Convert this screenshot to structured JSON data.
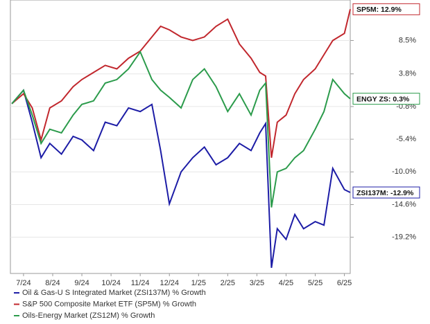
{
  "chart_data": {
    "type": "line",
    "x": [
      -0.4,
      0,
      0.3,
      0.6,
      0.9,
      1.3,
      1.7,
      2,
      2.4,
      2.8,
      3.2,
      3.6,
      4,
      4.4,
      4.7,
      5,
      5.4,
      5.8,
      6.2,
      6.6,
      7,
      7.4,
      7.8,
      8.1,
      8.3,
      8.5,
      8.7,
      9,
      9.3,
      9.6,
      10,
      10.3,
      10.6,
      11,
      11.2
    ],
    "xlim": [
      -0.45,
      11.2
    ],
    "xticks": [
      {
        "value": 0,
        "label": "7/24"
      },
      {
        "value": 1,
        "label": "8/24"
      },
      {
        "value": 2,
        "label": "9/24"
      },
      {
        "value": 3,
        "label": "10/24"
      },
      {
        "value": 4,
        "label": "11/24"
      },
      {
        "value": 5,
        "label": "12/24"
      },
      {
        "value": 6,
        "label": "1/25"
      },
      {
        "value": 7,
        "label": "2/25"
      },
      {
        "value": 8,
        "label": "3/25"
      },
      {
        "value": 9,
        "label": "4/25"
      },
      {
        "value": 10,
        "label": "5/25"
      },
      {
        "value": 11,
        "label": "6/25"
      }
    ],
    "ylim": [
      -24.3,
      14.2
    ],
    "yticks": [
      {
        "value": 8.5,
        "label": "8.5%"
      },
      {
        "value": 3.8,
        "label": "3.8%"
      },
      {
        "value": -0.8,
        "label": "-0.8%"
      },
      {
        "value": -5.4,
        "label": "-5.4%"
      },
      {
        "value": -10.0,
        "label": "-10.0%"
      },
      {
        "value": -14.6,
        "label": "-14.6%"
      },
      {
        "value": -19.2,
        "label": "-19.2%"
      }
    ],
    "grid": true,
    "series": [
      {
        "name": "Oil & Gas-U S Integrated Market (ZSI137M) % Growth",
        "color": "#1c1ca6",
        "end_label": "ZSI137M: -12.9%",
        "values": [
          -0.4,
          1.5,
          -3,
          -8,
          -6,
          -7.5,
          -5,
          -5.5,
          -7,
          -3,
          -3.5,
          -1,
          -1.5,
          -0.5,
          -7,
          -14.5,
          -10,
          -8,
          -6.5,
          -9,
          -8,
          -6,
          -7,
          -4.5,
          -3.2,
          -23.5,
          -18,
          -19.5,
          -16,
          -18,
          -17,
          -17.5,
          -9.5,
          -12.5,
          -12.9
        ]
      },
      {
        "name": "S&P 500 Composite Market ETF (SP5M) % Growth",
        "color": "#c1272d",
        "end_label": "SP5M: 12.9%",
        "values": [
          -0.4,
          1,
          -1,
          -5.5,
          -1,
          0,
          2,
          3,
          4,
          5,
          4.5,
          6,
          7,
          9,
          10.5,
          10,
          9,
          8.5,
          9,
          10.5,
          11.5,
          8,
          6,
          4,
          3.5,
          -8,
          -3,
          -2,
          1,
          3,
          4.5,
          6.5,
          8.5,
          9.5,
          12.9
        ]
      },
      {
        "name": "Oils-Energy Market (ZS12M) % Growth",
        "color": "#2b9b4b",
        "end_label": "ENGY ZS: 0.3%",
        "values": [
          -0.4,
          1.5,
          -2,
          -6,
          -4,
          -4.5,
          -2,
          -0.5,
          0,
          2.5,
          3,
          4.5,
          6.9,
          3,
          1.5,
          0.5,
          -1,
          3,
          4.5,
          2,
          -1.5,
          1,
          -2,
          1.5,
          2.5,
          -15,
          -10,
          -9.5,
          -8,
          -7,
          -4,
          -1.5,
          3,
          1,
          0.3
        ]
      }
    ]
  }
}
